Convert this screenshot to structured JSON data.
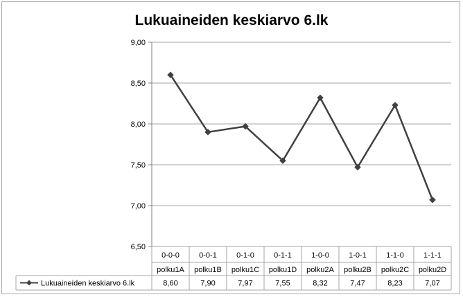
{
  "chart_data": {
    "type": "line",
    "title": "Lukuaineiden keskiarvo 6.lk",
    "categories": [
      [
        "0-0-0",
        "polku1A"
      ],
      [
        "0-0-1",
        "polku1B"
      ],
      [
        "0-1-0",
        "polku1C"
      ],
      [
        "0-1-1",
        "polku1D"
      ],
      [
        "1-0-0",
        "polku2A"
      ],
      [
        "1-0-1",
        "polku2B"
      ],
      [
        "1-1-0",
        "polku2C"
      ],
      [
        "1-1-1",
        "polku2D"
      ]
    ],
    "series": [
      {
        "name": "Lukuaineiden keskiarvo 6.lk",
        "values": [
          8.6,
          7.9,
          7.97,
          7.55,
          8.32,
          7.47,
          8.23,
          7.07
        ],
        "labels": [
          "8,60",
          "7,90",
          "7,97",
          "7,55",
          "8,32",
          "7,47",
          "8,23",
          "7,07"
        ]
      }
    ],
    "ylim": [
      6.5,
      9.0
    ],
    "yticks": [
      "6,50",
      "7,00",
      "7,50",
      "8,00",
      "8,50",
      "9,00"
    ],
    "ytick_values": [
      6.5,
      7.0,
      7.5,
      8.0,
      8.5,
      9.0
    ],
    "grid": true,
    "legend": "data-table",
    "colors": {
      "line": "#404040",
      "grid": "#a6a6a6",
      "axis": "#808080"
    }
  }
}
